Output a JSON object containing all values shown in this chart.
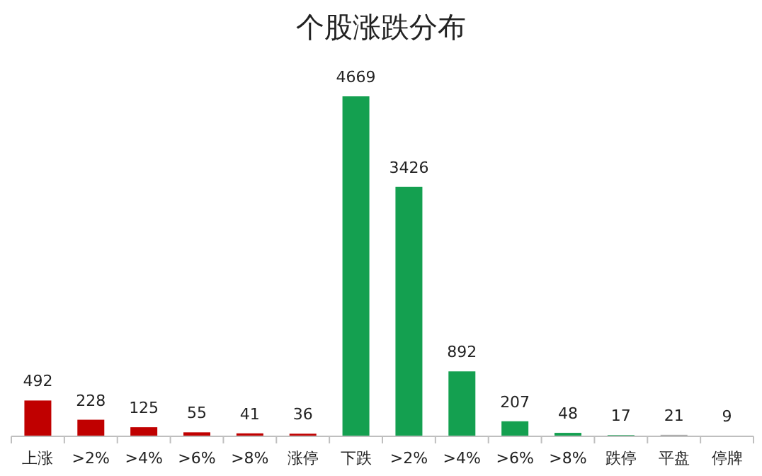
{
  "chart_data": {
    "type": "bar",
    "title": "个股涨跌分布",
    "categories": [
      "上涨",
      ">2%",
      ">4%",
      ">6%",
      ">8%",
      "涨停",
      "下跌",
      ">2%",
      ">4%",
      ">6%",
      ">8%",
      "跌停",
      "平盘",
      "停牌"
    ],
    "values": [
      492,
      228,
      125,
      55,
      41,
      36,
      4669,
      3426,
      892,
      207,
      48,
      17,
      21,
      9
    ],
    "colors": [
      "#c00000",
      "#c00000",
      "#c00000",
      "#c00000",
      "#c00000",
      "#c00000",
      "#14a050",
      "#14a050",
      "#14a050",
      "#14a050",
      "#14a050",
      "#14a050",
      "#a6a6a6",
      "#a6a6a6"
    ],
    "data_labels": true
  }
}
